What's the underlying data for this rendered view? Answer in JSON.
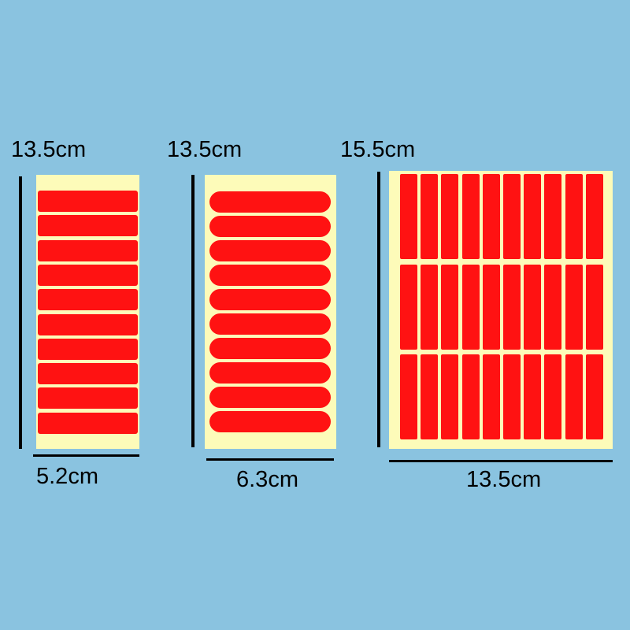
{
  "colors": {
    "background": "#8ac3e0",
    "sheet": "#fdfbb9",
    "sticker": "#ff1212"
  },
  "sheets": [
    {
      "height_label": "13.5cm",
      "width_label": "5.2cm",
      "strip_count": 10,
      "shape": "rounded-rectangle"
    },
    {
      "height_label": "13.5cm",
      "width_label": "6.3cm",
      "strip_count": 10,
      "shape": "pill"
    },
    {
      "height_label": "15.5cm",
      "width_label": "13.5cm",
      "columns": 10,
      "rows": 3,
      "shape": "vertical-rectangle"
    }
  ]
}
